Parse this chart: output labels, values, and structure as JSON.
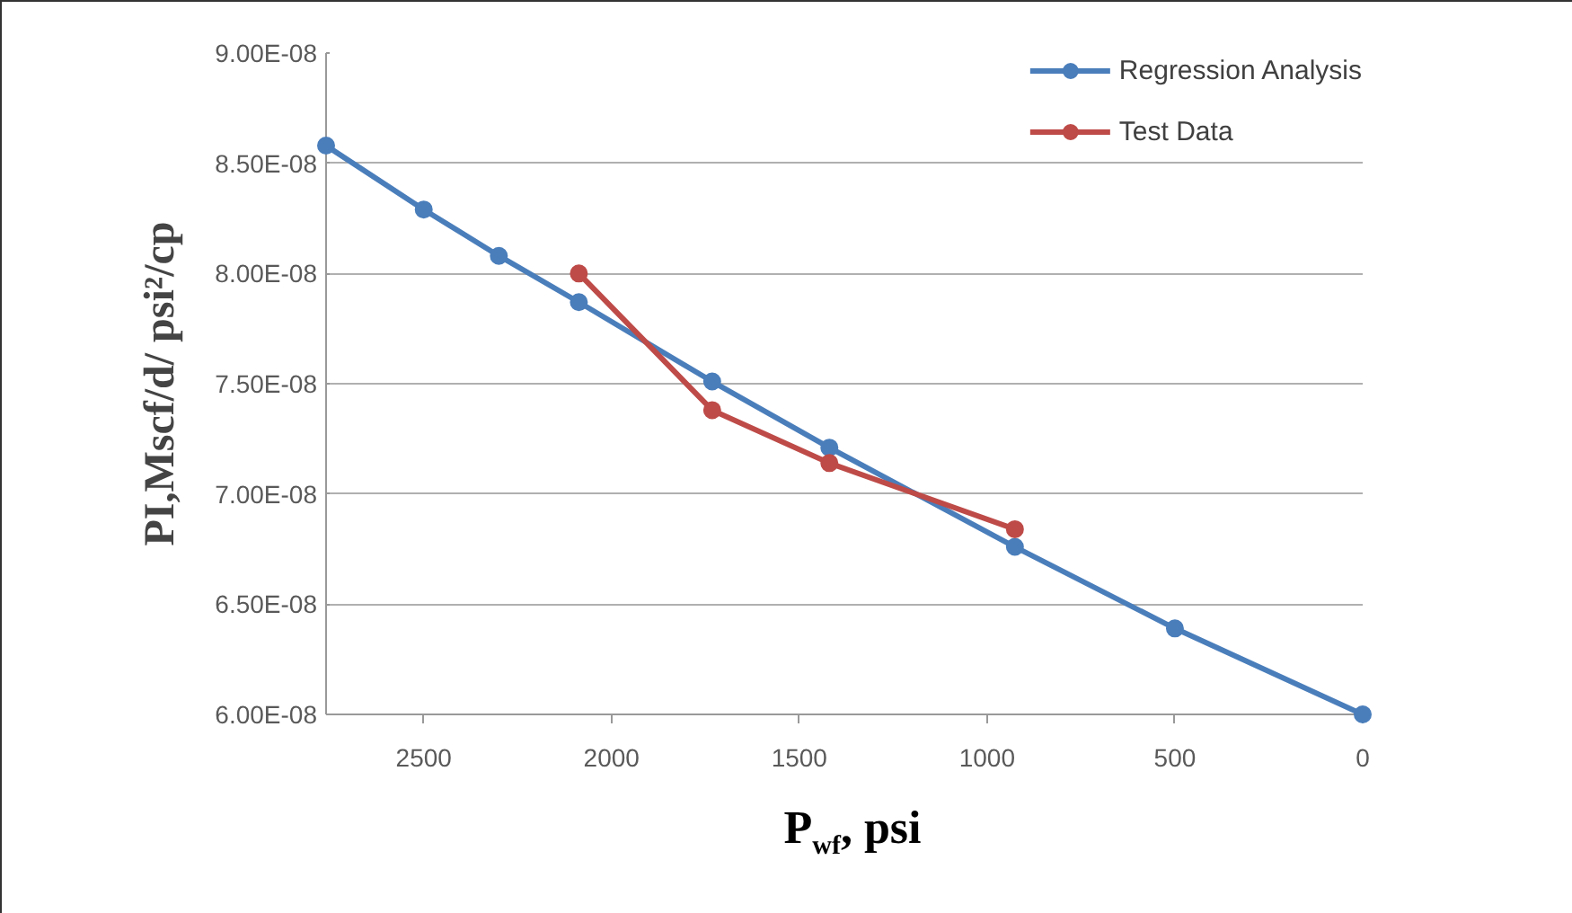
{
  "chart_data": {
    "type": "line",
    "xlabel": "P$_{wf}$, psi",
    "ylabel": "PI,Mscf/d/ psi²/cp",
    "xlim": [
      2760,
      0
    ],
    "xticks": [
      2500,
      2000,
      1500,
      1000,
      500,
      0
    ],
    "ylim": [
      6e-08,
      9e-08
    ],
    "yticks": [
      {
        "value": 6e-08,
        "label": "6.00E-08"
      },
      {
        "value": 6.5e-08,
        "label": "6.50E-08"
      },
      {
        "value": 7e-08,
        "label": "7.00E-08"
      },
      {
        "value": 7.5e-08,
        "label": "7.50E-08"
      },
      {
        "value": 8e-08,
        "label": "8.00E-08"
      },
      {
        "value": 8.5e-08,
        "label": "8.50E-08"
      },
      {
        "value": 9e-08,
        "label": "9.00E-08"
      }
    ],
    "grid": "y",
    "legend": "top right",
    "marker": "circle",
    "line_style": "solid",
    "series": [
      {
        "name": "Regression Analysis",
        "color": "#4a7ebb",
        "x": [
          2760,
          2500,
          2300,
          2087,
          1732,
          1420,
          926,
          500,
          0
        ],
        "values": [
          8.58e-08,
          8.29e-08,
          8.08e-08,
          7.87e-08,
          7.51e-08,
          7.21e-08,
          6.76e-08,
          6.39e-08,
          6e-08
        ]
      },
      {
        "name": "Test Data",
        "color": "#be4b48",
        "x": [
          2087,
          1732,
          1420,
          926
        ],
        "values": [
          8e-08,
          7.38e-08,
          7.14e-08,
          6.84e-08
        ]
      }
    ]
  }
}
